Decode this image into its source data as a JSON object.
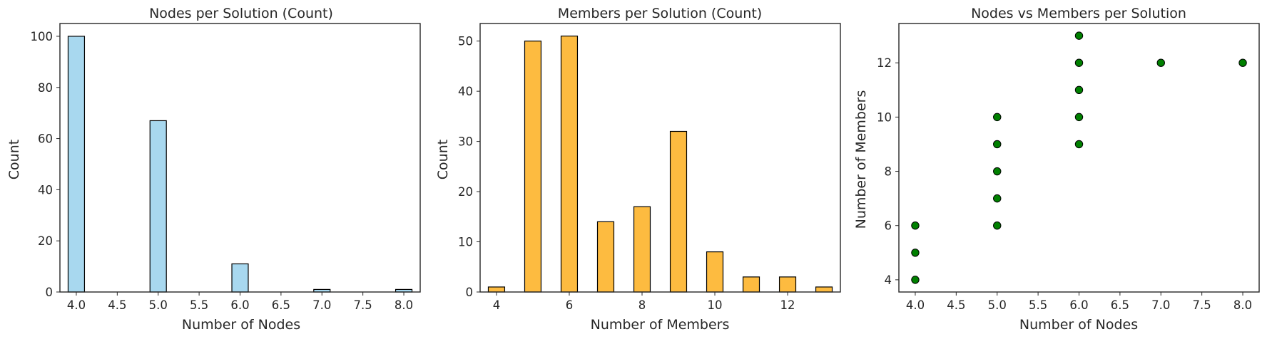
{
  "chart_data": [
    {
      "type": "bar",
      "title": "Nodes per Solution (Count)",
      "xlabel": "Number of Nodes",
      "ylabel": "Count",
      "bar_color": "#a8d8ef",
      "edge_color": "#000000",
      "x": [
        4.0,
        5.0,
        6.0,
        7.0,
        8.0
      ],
      "values": [
        100,
        67,
        11,
        1,
        1
      ],
      "bin_width": 0.2,
      "xlim": [
        3.8,
        8.2
      ],
      "ylim": [
        0,
        105
      ],
      "xticks": [
        4.0,
        4.5,
        5.0,
        5.5,
        6.0,
        6.5,
        7.0,
        7.5,
        8.0
      ],
      "xtick_labels": [
        "4.0",
        "4.5",
        "5.0",
        "5.5",
        "6.0",
        "6.5",
        "7.0",
        "7.5",
        "8.0"
      ],
      "yticks": [
        0,
        20,
        40,
        60,
        80,
        100
      ],
      "ytick_labels": [
        "0",
        "20",
        "40",
        "60",
        "80",
        "100"
      ],
      "grid": false
    },
    {
      "type": "bar",
      "title": "Members per Solution (Count)",
      "xlabel": "Number of Members",
      "ylabel": "Count",
      "bar_color": "#fdbb40",
      "edge_color": "#000000",
      "x": [
        4,
        5,
        6,
        7,
        8,
        9,
        10,
        11,
        12,
        13
      ],
      "values": [
        1,
        50,
        51,
        14,
        17,
        32,
        8,
        3,
        3,
        1
      ],
      "bin_width": 0.45,
      "xlim": [
        3.55,
        13.45
      ],
      "ylim": [
        0,
        53.5
      ],
      "xticks": [
        4,
        6,
        8,
        10,
        12
      ],
      "xtick_labels": [
        "4",
        "6",
        "8",
        "10",
        "12"
      ],
      "yticks": [
        0,
        10,
        20,
        30,
        40,
        50
      ],
      "ytick_labels": [
        "0",
        "10",
        "20",
        "30",
        "40",
        "50"
      ],
      "grid": false
    },
    {
      "type": "scatter",
      "title": "Nodes vs Members per Solution",
      "xlabel": "Number of Nodes",
      "ylabel": "Number of Members",
      "marker_color": "#008000",
      "edge_color": "#000000",
      "points": [
        [
          4,
          4
        ],
        [
          4,
          5
        ],
        [
          4,
          6
        ],
        [
          5,
          6
        ],
        [
          5,
          7
        ],
        [
          5,
          8
        ],
        [
          5,
          9
        ],
        [
          5,
          10
        ],
        [
          6,
          9
        ],
        [
          6,
          10
        ],
        [
          6,
          11
        ],
        [
          6,
          12
        ],
        [
          6,
          13
        ],
        [
          7,
          12
        ],
        [
          8,
          12
        ]
      ],
      "xlim": [
        3.8,
        8.2
      ],
      "ylim": [
        3.55,
        13.45
      ],
      "xticks": [
        4.0,
        4.5,
        5.0,
        5.5,
        6.0,
        6.5,
        7.0,
        7.5,
        8.0
      ],
      "xtick_labels": [
        "4.0",
        "4.5",
        "5.0",
        "5.5",
        "6.0",
        "6.5",
        "7.0",
        "7.5",
        "8.0"
      ],
      "yticks": [
        4,
        6,
        8,
        10,
        12
      ],
      "ytick_labels": [
        "4",
        "6",
        "8",
        "10",
        "12"
      ],
      "grid": false
    }
  ]
}
